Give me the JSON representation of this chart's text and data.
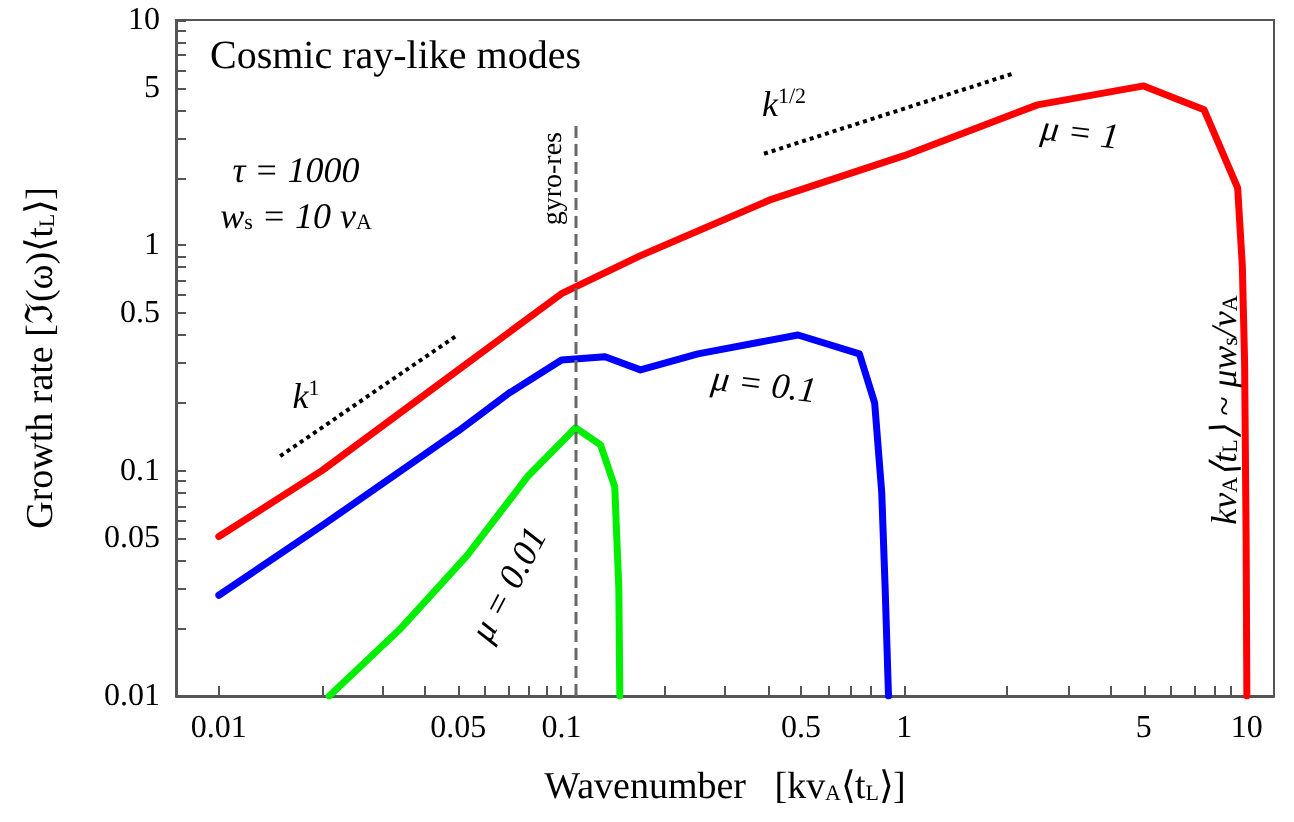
{
  "chart_data": {
    "type": "line",
    "title": "Cosmic ray-like modes",
    "xlabel": "Wavenumber   [kv$_{A}$⟨t$_{L}$⟩]",
    "ylabel": "Growth rate [ℑ(ω)⟨t$_{L}$⟩]",
    "log": "xy",
    "xlim": [
      0.0075,
      12
    ],
    "ylim": [
      0.01,
      10
    ],
    "marker": "none",
    "line_style": "solid",
    "xticks": [
      0.01,
      {
        "value": 0.02,
        "label": null
      },
      {
        "value": 0.03,
        "label": null
      },
      {
        "value": 0.04,
        "label": null
      },
      0.05,
      {
        "value": 0.06,
        "label": null
      },
      {
        "value": 0.07,
        "label": null
      },
      {
        "value": 0.08,
        "label": null
      },
      {
        "value": 0.09,
        "label": null
      },
      0.1,
      {
        "value": 0.2,
        "label": null
      },
      {
        "value": 0.3,
        "label": null
      },
      {
        "value": 0.4,
        "label": null
      },
      0.5,
      {
        "value": 0.6,
        "label": null
      },
      {
        "value": 0.7,
        "label": null
      },
      {
        "value": 0.8,
        "label": null
      },
      {
        "value": 0.9,
        "label": null
      },
      1,
      {
        "value": 2,
        "label": null
      },
      {
        "value": 3,
        "label": null
      },
      {
        "value": 4,
        "label": null
      },
      5,
      {
        "value": 6,
        "label": null
      },
      {
        "value": 7,
        "label": null
      },
      {
        "value": 8,
        "label": null
      },
      {
        "value": 9,
        "label": null
      },
      10
    ],
    "yticks": [
      0.01,
      {
        "value": 0.02,
        "label": null
      },
      {
        "value": 0.03,
        "label": null
      },
      {
        "value": 0.04,
        "label": null
      },
      0.05,
      {
        "value": 0.06,
        "label": null
      },
      {
        "value": 0.07,
        "label": null
      },
      {
        "value": 0.08,
        "label": null
      },
      {
        "value": 0.09,
        "label": null
      },
      0.1,
      {
        "value": 0.2,
        "label": null
      },
      {
        "value": 0.3,
        "label": null
      },
      {
        "value": 0.4,
        "label": null
      },
      0.5,
      {
        "value": 0.6,
        "label": null
      },
      {
        "value": 0.7,
        "label": null
      },
      {
        "value": 0.8,
        "label": null
      },
      {
        "value": 0.9,
        "label": null
      },
      1,
      {
        "value": 2,
        "label": null
      },
      {
        "value": 3,
        "label": null
      },
      {
        "value": 4,
        "label": null
      },
      5,
      {
        "value": 6,
        "label": null
      },
      {
        "value": 7,
        "label": null
      },
      {
        "value": 8,
        "label": null
      },
      {
        "value": 9,
        "label": null
      },
      10
    ],
    "series": [
      {
        "color": "#ff0000",
        "x": [
          0.01,
          0.02,
          0.05,
          0.1,
          0.17,
          0.41,
          1,
          2.45,
          5,
          7.5,
          9.4,
          9.7,
          9.85,
          9.95,
          10
        ],
        "values": [
          0.051,
          0.1,
          0.28,
          0.61,
          0.9,
          1.6,
          2.5,
          4.2,
          5.1,
          4.0,
          1.8,
          0.81,
          0.3,
          0.05,
          0.01
        ]
      },
      {
        "color": "#0000ff",
        "x": [
          0.01,
          0.02,
          0.05,
          0.07,
          0.1,
          0.134,
          0.17,
          0.25,
          0.49,
          0.74,
          0.82,
          0.86,
          0.88,
          0.9
        ],
        "values": [
          0.028,
          0.057,
          0.15,
          0.22,
          0.31,
          0.32,
          0.28,
          0.33,
          0.4,
          0.33,
          0.2,
          0.08,
          0.03,
          0.01
        ]
      },
      {
        "color": "#00ee00",
        "x": [
          0.021,
          0.034,
          0.053,
          0.08,
          0.11,
          0.13,
          0.143,
          0.147,
          0.148
        ],
        "values": [
          0.01,
          0.02,
          0.042,
          0.095,
          0.155,
          0.13,
          0.085,
          0.03,
          0.01
        ]
      },
      {
        "color": "#000000",
        "line_style": "dotted",
        "x": [
          0.0151,
          0.0497
        ],
        "values": [
          0.116,
          0.4
        ]
      },
      {
        "color": "#000000",
        "line_style": "dotted",
        "x": [
          0.39,
          2.06
        ],
        "values": [
          2.55,
          5.76
        ]
      }
    ],
    "ref_lines": [
      {
        "axis": "x",
        "value": 0.11,
        "label": "gyro-res",
        "color": "#666666",
        "line_style": "dashed"
      }
    ],
    "annotations": [
      "τ = 1000",
      "w$_{s}$ = 10 v$_{A}$",
      "k$^{1}$",
      "k$^{1/2}$",
      "μ = 1",
      "μ = 0.1",
      "μ = 0.01",
      "kv$_{A}$⟨t$_{L}$⟩ ~ μw$_{s}$/v$_{A}$"
    ]
  }
}
